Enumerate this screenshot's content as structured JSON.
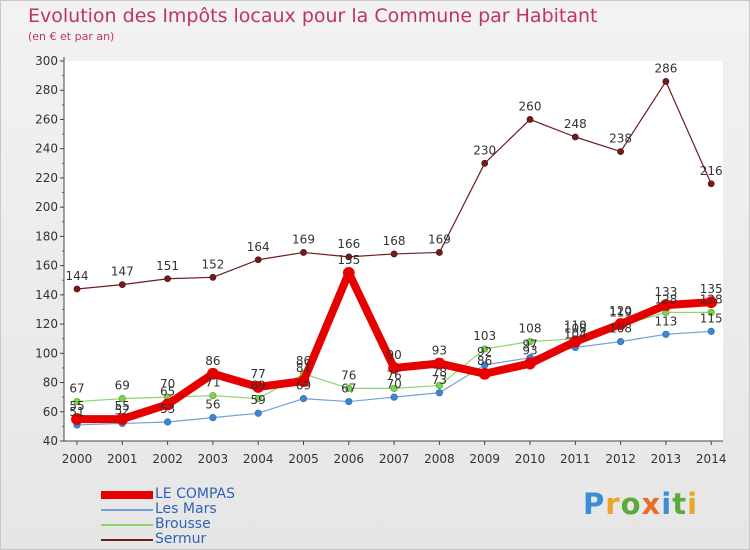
{
  "title": "Evolution des Impôts locaux pour la Commune par Habitant",
  "subtitle": "(en € et par an)",
  "logo_text": "Proxiti",
  "chart_data": {
    "type": "line",
    "title": "Evolution des Impôts locaux pour la Commune par Habitant",
    "subtitle": "(en € et par an)",
    "xlabel": "",
    "ylabel": "",
    "x": [
      "2000",
      "2001",
      "2002",
      "2003",
      "2004",
      "2005",
      "2006",
      "2007",
      "2008",
      "2009",
      "2010",
      "2011",
      "2012",
      "2013",
      "2014"
    ],
    "ylim": [
      40,
      300
    ],
    "yticks": [
      40,
      60,
      80,
      100,
      120,
      140,
      160,
      180,
      200,
      220,
      240,
      260,
      280,
      300
    ],
    "grid": false,
    "legend_position": "bottom-left",
    "series": [
      {
        "name": "Sermur",
        "color": "#6e1c1c",
        "values": [
          144,
          147,
          151,
          152,
          164,
          169,
          166,
          168,
          169,
          230,
          260,
          248,
          238,
          286,
          216
        ],
        "labels": [
          "144",
          "147",
          "151",
          "152",
          "164",
          "169",
          "166",
          "168",
          "169",
          "230",
          "260",
          "248",
          "238",
          "286",
          "216"
        ]
      },
      {
        "name": "Les Mars",
        "color": "#6fa3d6",
        "values": [
          51,
          52,
          53,
          56,
          59,
          69,
          67,
          70,
          73,
          92,
          97,
          104,
          108,
          113,
          115
        ],
        "labels": [
          "51",
          "52",
          "53",
          "56",
          "59",
          "69",
          "67",
          "70",
          "73",
          "92",
          "97",
          "104",
          "108",
          "113",
          "115"
        ]
      },
      {
        "name": "Brousse",
        "color": "#8ed66a",
        "values": [
          67,
          69,
          70,
          71,
          69,
          86,
          76,
          76,
          78,
          103,
          108,
          110,
          119,
          128,
          128
        ],
        "labels": [
          "67",
          "69",
          "70",
          "71",
          "69",
          "86",
          "76",
          "76",
          "78",
          "103",
          "108",
          "110",
          "119",
          "128",
          "128"
        ]
      },
      {
        "name": "LE COMPAS",
        "color": "#e60000",
        "values": [
          55,
          55,
          65,
          86,
          77,
          81,
          155,
          90,
          93,
          86,
          93,
          108,
          120,
          133,
          135
        ],
        "labels": [
          "55",
          "55",
          "65",
          "86",
          "77",
          "81",
          "155",
          "90",
          "93",
          "86",
          "93",
          "108",
          "120",
          "133",
          "135"
        ]
      }
    ],
    "legend": [
      "LE COMPAS",
      "Les Mars",
      "Brousse",
      "Sermur"
    ]
  }
}
